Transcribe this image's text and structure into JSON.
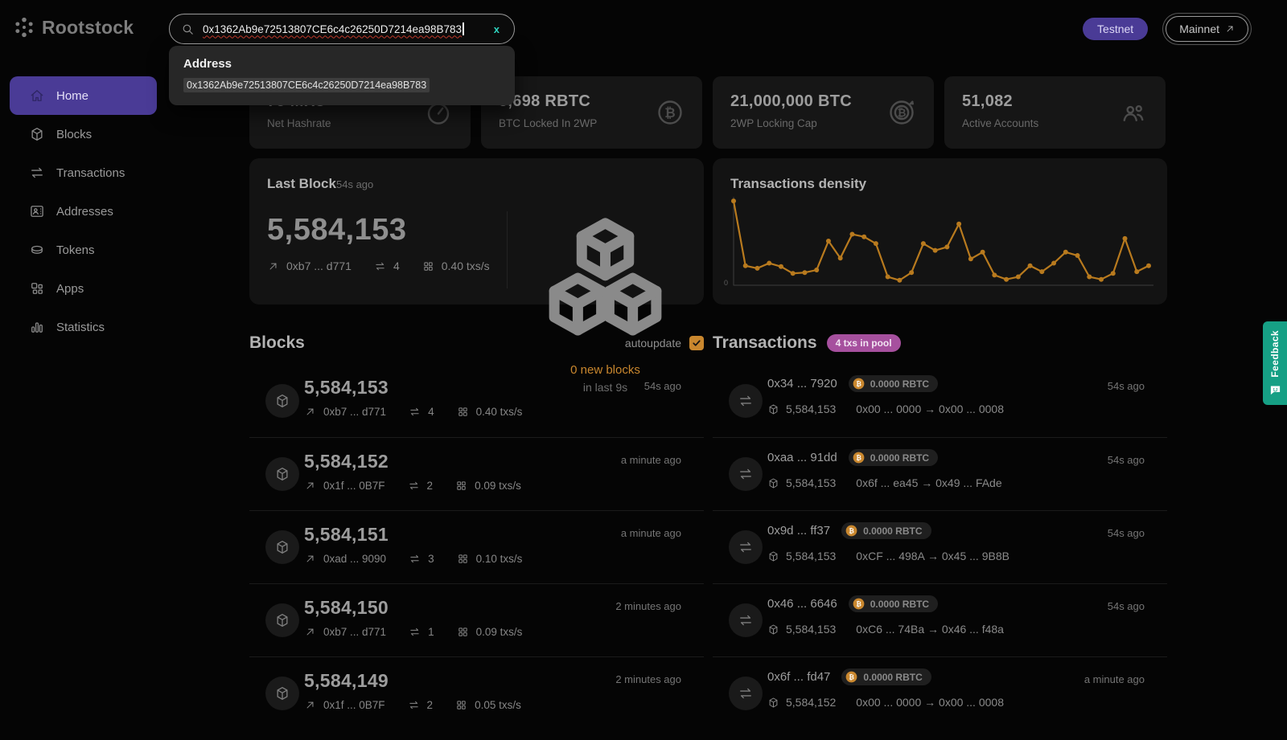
{
  "brand": {
    "name": "Rootstock"
  },
  "theme": {
    "accent_purple": "#4a3b96",
    "accent_orange": "#c9872e",
    "badge_magenta": "#a6509e",
    "feedback_teal": "#16a085",
    "clear_teal": "#2fd5c0",
    "chart_line": "#b87a1e"
  },
  "header": {
    "search": {
      "value": "0x1362Ab9e72513807CE6c4c26250D7214ea98B783",
      "clear_label": "x"
    },
    "suggestion": {
      "title": "Address",
      "value": "0x1362Ab9e72513807CE6c4c26250D7214ea98B783"
    },
    "testnet_label": "Testnet",
    "mainnet_label": "Mainnet"
  },
  "sidebar": {
    "items": [
      {
        "label": "Home",
        "icon": "home",
        "active": true
      },
      {
        "label": "Blocks",
        "icon": "cube"
      },
      {
        "label": "Transactions",
        "icon": "swap"
      },
      {
        "label": "Addresses",
        "icon": "id-card"
      },
      {
        "label": "Tokens",
        "icon": "coin"
      },
      {
        "label": "Apps",
        "icon": "apps"
      },
      {
        "label": "Statistics",
        "icon": "bars"
      }
    ]
  },
  "stats": [
    {
      "value": "75 MHs",
      "label": "Net Hashrate",
      "icon": "gauge"
    },
    {
      "value": "5,698 RBTC",
      "label": "BTC Locked In 2WP",
      "icon": "bitcoin"
    },
    {
      "value": "21,000,000 BTC",
      "label": "2WP Locking Cap",
      "icon": "bitcoin-target"
    },
    {
      "value": "51,082",
      "label": "Active Accounts",
      "icon": "users"
    }
  ],
  "last_block": {
    "title": "Last Block",
    "time": "54s ago",
    "number": "5,584,153",
    "miner": "0xb7 ... d771",
    "tx_count": "4",
    "density": "0.40 txs/s",
    "new_blocks": "0 new blocks",
    "window": "in last 9s"
  },
  "chart_data": {
    "type": "line",
    "title": "Transactions density",
    "values": [
      97,
      21,
      18,
      24,
      20,
      12,
      13,
      16,
      50,
      30,
      58,
      55,
      47,
      8,
      4,
      13,
      47,
      39,
      43,
      70,
      29,
      37,
      10,
      5,
      8,
      21,
      14,
      24,
      37,
      33,
      8,
      5,
      12,
      53,
      14,
      21
    ],
    "ylim": [
      0,
      100
    ],
    "yticks": [
      "0"
    ],
    "xlabel": "",
    "ylabel": "",
    "grid": false,
    "legend_position": "none",
    "line_color": "#b87a1e",
    "marker": "circle"
  },
  "blocks": {
    "title": "Blocks",
    "autoupdate_label": "autoupdate",
    "rows": [
      {
        "number": "5,584,153",
        "time": "54s ago",
        "miner": "0xb7 ... d771",
        "tx_count": "4",
        "density": "0.40 txs/s"
      },
      {
        "number": "5,584,152",
        "time": "a minute ago",
        "miner": "0x1f ... 0B7F",
        "tx_count": "2",
        "density": "0.09 txs/s"
      },
      {
        "number": "5,584,151",
        "time": "a minute ago",
        "miner": "0xad ... 9090",
        "tx_count": "3",
        "density": "0.10 txs/s"
      },
      {
        "number": "5,584,150",
        "time": "2 minutes ago",
        "miner": "0xb7 ... d771",
        "tx_count": "1",
        "density": "0.09 txs/s"
      },
      {
        "number": "5,584,149",
        "time": "2 minutes ago",
        "miner": "0x1f ... 0B7F",
        "tx_count": "2",
        "density": "0.05 txs/s"
      }
    ]
  },
  "transactions": {
    "title": "Transactions",
    "pool_badge": "4 txs in pool",
    "rows": [
      {
        "hash": "0x34 ... 7920",
        "amount": "0.0000 RBTC",
        "time": "54s ago",
        "block": "5,584,153",
        "route": "0x00 ... 0000 → 0x00 ... 0008"
      },
      {
        "hash": "0xaa ... 91dd",
        "amount": "0.0000 RBTC",
        "time": "54s ago",
        "block": "5,584,153",
        "route": "0x6f ... ea45 →      0x49 ... FAde"
      },
      {
        "hash": "0x9d ... ff37",
        "amount": "0.0000 RBTC",
        "time": "54s ago",
        "block": "5,584,153",
        "route": "0xCF ... 498A → 0x45 ... 9B8B"
      },
      {
        "hash": "0x46 ... 6646",
        "amount": "0.0000 RBTC",
        "time": "54s ago",
        "block": "5,584,153",
        "route": "0xC6 ... 74Ba → 0x46 ... f48a"
      },
      {
        "hash": "0x6f ... fd47",
        "amount": "0.0000 RBTC",
        "time": "a minute ago",
        "block": "5,584,152",
        "route": "0x00 ... 0000 → 0x00 ... 0008"
      }
    ]
  },
  "feedback_label": "Feedback"
}
